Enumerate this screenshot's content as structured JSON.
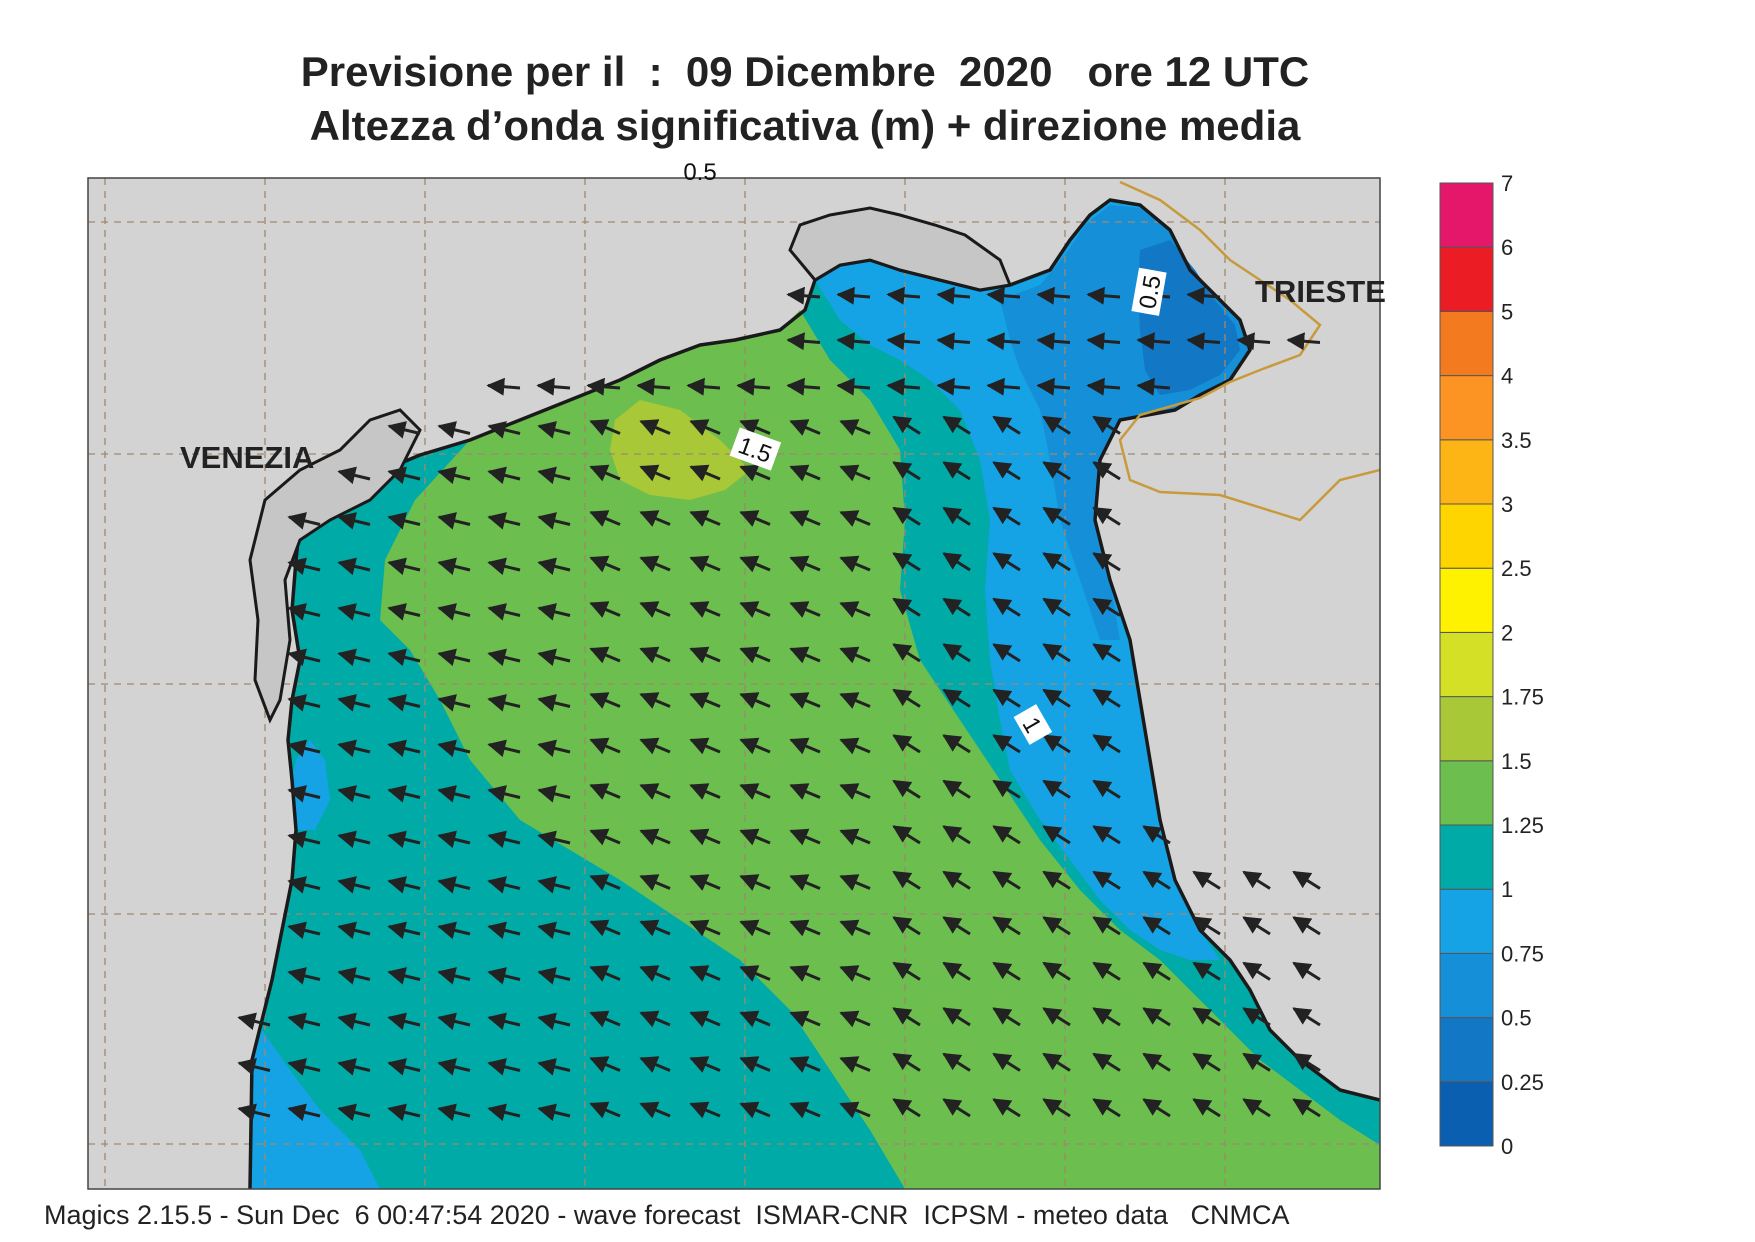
{
  "title": {
    "line1": "Previsione per il  :  09 Dicembre  2020   ore 12 UTC",
    "line2": "Altezza d’onda significativa (m) + direzione media"
  },
  "places": [
    {
      "id": "venezia",
      "name": "VENEZIA"
    },
    {
      "id": "trieste",
      "name": "TRIESTE"
    }
  ],
  "contour_labels": [
    "1.5",
    "0.5",
    "1",
    "0.5"
  ],
  "legend": {
    "ticks": [
      "0",
      "0.25",
      "0.5",
      "0.75",
      "1",
      "1.25",
      "1.5",
      "1.75",
      "2",
      "2.5",
      "3",
      "3.5",
      "4",
      "5",
      "6",
      "7"
    ],
    "colors": [
      "#0a5fb0",
      "#1277c4",
      "#1590d8",
      "#16a3e6",
      "#00aaa6",
      "#6cbe4f",
      "#a8c838",
      "#d4e025",
      "#fff200",
      "#ffd500",
      "#fdb415",
      "#fb9422",
      "#f47a20",
      "#ec1c24",
      "#e5176a"
    ]
  },
  "wave_field": {
    "variable": "significant wave height",
    "unit": "m",
    "direction": "mean wave direction toward NW / W",
    "max_zone_m": "1.5 - 1.75",
    "min_zone_m": "0.25 - 0.5"
  },
  "colors": {
    "land": "#d3d3d3",
    "coast": "#1a1a1a",
    "border": "#c89a3c",
    "grid": "#a08870",
    "arrow": "#222222"
  },
  "footer": "Magics 2.15.5 - Sun Dec  6 00:47:54 2020 - wave forecast  ISMAR-CNR  ICPSM - meteo data   CNMCA"
}
